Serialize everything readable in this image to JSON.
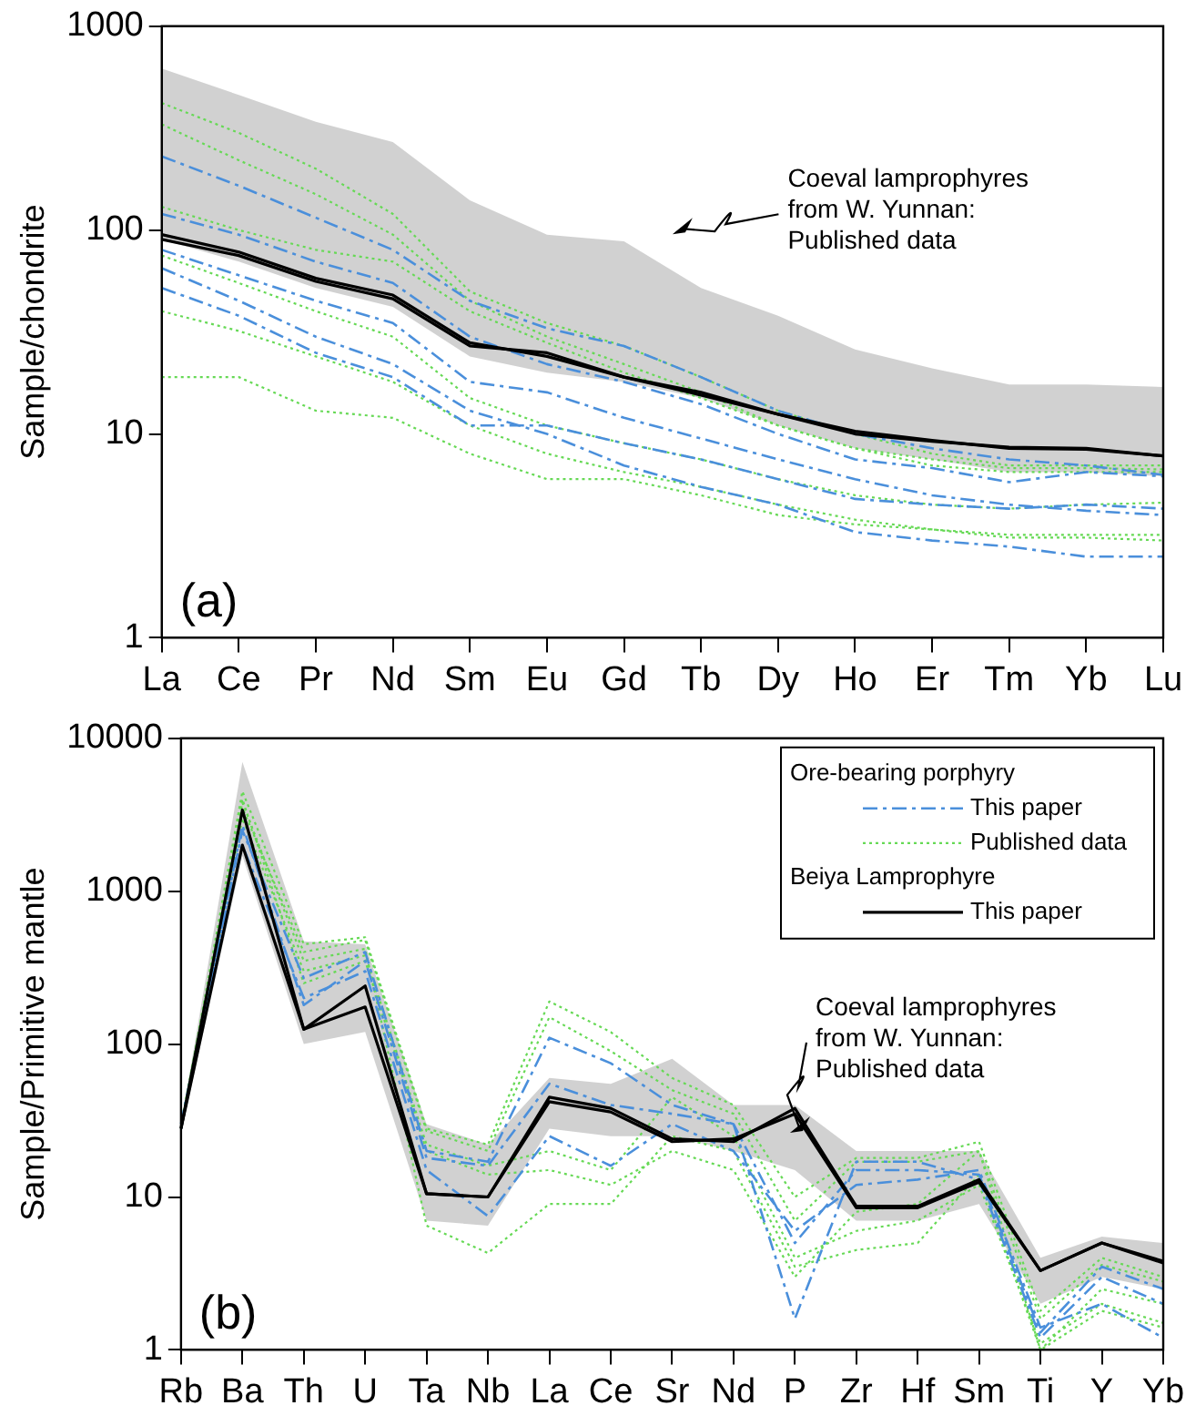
{
  "chart_data": [
    {
      "type": "line",
      "ylabel": "Sample/chondrite",
      "log": true,
      "ylim": [
        1,
        1000
      ],
      "yticks": [
        1,
        10,
        100,
        1000
      ],
      "marker": "none",
      "legend": false,
      "categories": [
        "La",
        "Ce",
        "Pr",
        "Nd",
        "Sm",
        "Eu",
        "Gd",
        "Tb",
        "Dy",
        "Ho",
        "Er",
        "Tm",
        "Yb",
        "Lu"
      ],
      "annotations": [
        "Coeval lamprophyres\nfrom W. Yunnan:\nPublished data",
        "(a)"
      ],
      "series": [
        {
          "color": "#4a8fdb",
          "line_style": "dashed",
          "values": [
            230,
            165,
            115,
            80,
            45,
            33,
            27,
            19,
            13,
            10,
            8.5,
            7.5,
            7,
            6.3
          ]
        },
        {
          "color": "#4a8fdb",
          "line_style": "dashed",
          "values": [
            120,
            95,
            70,
            55,
            30,
            22,
            18,
            14,
            10,
            7.5,
            6.8,
            5.8,
            6.5,
            6.2
          ]
        },
        {
          "color": "#4a8fdb",
          "line_style": "dashed",
          "values": [
            80,
            60,
            45,
            35,
            18,
            16,
            12,
            9.5,
            7.5,
            6,
            5,
            4.5,
            4.2,
            4
          ]
        },
        {
          "color": "#4a8fdb",
          "line_style": "dashed",
          "values": [
            65,
            45,
            30,
            22,
            13,
            10,
            7,
            5.5,
            4.5,
            3.3,
            3,
            2.8,
            2.5,
            2.5
          ]
        },
        {
          "color": "#4a8fdb",
          "line_style": "dashed",
          "values": [
            52,
            38,
            25,
            19,
            11,
            11,
            9,
            7.5,
            6,
            4.8,
            4.5,
            4.3,
            4.5,
            4.3
          ]
        },
        {
          "color": "#66d955",
          "line_style": "dotted",
          "values": [
            420,
            300,
            200,
            120,
            50,
            35,
            27,
            19,
            13,
            10,
            8,
            7,
            7,
            7
          ]
        },
        {
          "color": "#66d955",
          "line_style": "dotted",
          "values": [
            330,
            220,
            150,
            95,
            45,
            30,
            22,
            16,
            11,
            8.5,
            7.5,
            6.8,
            6.8,
            6.7
          ]
        },
        {
          "color": "#66d955",
          "line_style": "dotted",
          "values": [
            130,
            100,
            80,
            70,
            40,
            28,
            20,
            15,
            11,
            8.5,
            7,
            6.5,
            6.5,
            6.5
          ]
        },
        {
          "color": "#66d955",
          "line_style": "dotted",
          "values": [
            75,
            55,
            40,
            30,
            15,
            11,
            9,
            7.5,
            6,
            5,
            4.5,
            4.3,
            4.5,
            4.6
          ]
        },
        {
          "color": "#66d955",
          "line_style": "dotted",
          "values": [
            40,
            32,
            24,
            18,
            11,
            8,
            6.5,
            5.5,
            4.5,
            3.8,
            3.4,
            3.1,
            3.1,
            3
          ]
        },
        {
          "color": "#66d955",
          "line_style": "dotted",
          "values": [
            19,
            19,
            13,
            12,
            8,
            6,
            6,
            5,
            4,
            3.6,
            3.4,
            3.2,
            3.2,
            3.2
          ]
        },
        {
          "color": "#000000",
          "line_style": "solid",
          "values": [
            95,
            78,
            58,
            48,
            28,
            24,
            19,
            16,
            12.5,
            10.3,
            9.3,
            8.5,
            8.4,
            7.8
          ],
          "lower": [
            90,
            70,
            52,
            42,
            24,
            20,
            18,
            15,
            11,
            8.5,
            7.5,
            6.5,
            6.5,
            6.2
          ],
          "upper": [
            620,
            460,
            340,
            270,
            140,
            95,
            88,
            52,
            38,
            26,
            21,
            17.5,
            17.5,
            17
          ]
        },
        {
          "color": "#000000",
          "line_style": "solid",
          "values": [
            90,
            75,
            56,
            46,
            27,
            25,
            19,
            15.5,
            12.5,
            10,
            9.2,
            8.6,
            8.5,
            7.8
          ]
        }
      ]
    },
    {
      "type": "line",
      "ylabel": "Sample/Primitive mantle",
      "log": true,
      "ylim": [
        1,
        10000
      ],
      "yticks": [
        1,
        10,
        100,
        1000,
        10000
      ],
      "marker": "none",
      "legend": "top right",
      "categories": [
        "Rb",
        "Ba",
        "Th",
        "U",
        "Ta",
        "Nb",
        "La",
        "Ce",
        "Sr",
        "Nd",
        "P",
        "Zr",
        "Hf",
        "Sm",
        "Ti",
        "Y",
        "Yb"
      ],
      "annotations": [
        "Ore-bearing porphyry",
        "Beiya Lamprophyre",
        "Coeval lamprophyres\nfrom W. Yunnan:\nPublished data",
        "(b)"
      ],
      "series": [
        {
          "name": "This paper",
          "color": "#4a8fdb",
          "line_style": "dashed",
          "values": [
            30,
            2500,
            270,
            400,
            20,
            17,
            110,
            75,
            40,
            30,
            5,
            15,
            15,
            14,
            1.3,
            3.5,
            2.5
          ]
        },
        {
          "color": "#4a8fdb",
          "line_style": "dashed",
          "values": [
            30,
            2000,
            200,
            300,
            15,
            7.5,
            25,
            16,
            30,
            20,
            6,
            12,
            13,
            15,
            1.4,
            2,
            1.2
          ]
        },
        {
          "color": "#4a8fdb",
          "line_style": "dashed",
          "values": [
            28,
            2700,
            180,
            350,
            18,
            16,
            55,
            40,
            35,
            30,
            1.6,
            17,
            17,
            13,
            1.2,
            3,
            2
          ]
        },
        {
          "name": "Published data",
          "color": "#66d955",
          "line_style": "dotted",
          "values": [
            28,
            4500,
            450,
            500,
            28,
            22,
            190,
            120,
            60,
            40,
            10,
            18,
            18,
            23,
            1.8,
            4,
            3
          ]
        },
        {
          "color": "#66d955",
          "line_style": "dotted",
          "values": [
            30,
            3500,
            400,
            480,
            27,
            20,
            150,
            90,
            50,
            35,
            7,
            17,
            17,
            20,
            1.6,
            3.6,
            2.8
          ]
        },
        {
          "color": "#66d955",
          "line_style": "dotted",
          "values": [
            28,
            3000,
            300,
            380,
            22,
            16,
            20,
            15,
            45,
            25,
            4,
            6,
            7,
            12,
            1.1,
            2,
            1.5
          ]
        },
        {
          "color": "#66d955",
          "line_style": "dotted",
          "values": [
            28,
            3800,
            350,
            420,
            6.5,
            4.3,
            9,
            9,
            25,
            20,
            3.5,
            4.5,
            5,
            14,
            1,
            1.8,
            1.4
          ]
        },
        {
          "color": "#66d955",
          "line_style": "dotted",
          "values": [
            28,
            4000,
            250,
            350,
            20,
            14,
            15,
            12,
            20,
            15,
            3,
            8,
            9,
            20,
            1,
            2.5,
            2
          ]
        },
        {
          "name": "This paper",
          "color": "#000000",
          "line_style": "solid",
          "values": [
            28,
            3400,
            125,
            240,
            10.5,
            10,
            45,
            38,
            24,
            23,
            38,
            8.7,
            8.7,
            13,
            3.3,
            5,
            3.8
          ],
          "lower": [
            26,
            1700,
            100,
            120,
            7,
            6.5,
            28,
            25,
            25,
            20,
            15,
            7,
            7,
            9,
            2,
            3,
            2.5
          ],
          "upper": [
            30,
            7000,
            470,
            450,
            30,
            22,
            60,
            55,
            80,
            40,
            40,
            20,
            20,
            20,
            4,
            5.5,
            5
          ]
        },
        {
          "color": "#000000",
          "line_style": "solid",
          "values": [
            28,
            2000,
            125,
            175,
            10.5,
            10,
            42,
            36,
            23,
            24,
            35,
            8.5,
            8.5,
            12.5,
            3.3,
            5,
            3.7
          ]
        }
      ]
    }
  ]
}
